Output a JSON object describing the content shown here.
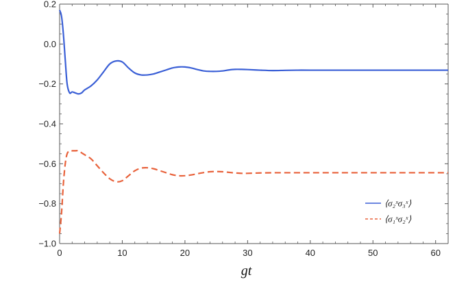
{
  "chart_data": {
    "type": "line",
    "title": "",
    "xlabel": "gt",
    "ylabel": "",
    "xlim": [
      0,
      62
    ],
    "ylim": [
      -1.0,
      0.2
    ],
    "x_ticks": [
      0,
      10,
      20,
      30,
      40,
      50,
      60
    ],
    "x_tick_labels": [
      "0",
      "10",
      "20",
      "30",
      "40",
      "50",
      "60"
    ],
    "y_ticks": [
      0.2,
      0.0,
      -0.2,
      -0.4,
      -0.6,
      -0.8,
      -1.0
    ],
    "y_tick_labels": [
      "0.2",
      "0.0",
      "−0.2",
      "−0.4",
      "−0.6",
      "−0.8",
      "−1.0"
    ],
    "grid": false,
    "legend_position": "right",
    "series": [
      {
        "name": "⟨σ₂ˣσ₃ˣ⟩",
        "color": "#3a5fd6",
        "style": "solid",
        "x": [
          0,
          0.3,
          0.6,
          0.9,
          1.2,
          1.6,
          2.0,
          2.5,
          3.0,
          3.5,
          4.0,
          5.0,
          6.0,
          7.0,
          8.0,
          9.0,
          10.0,
          11.0,
          12.0,
          13.0,
          14.0,
          15.0,
          16.0,
          17.0,
          18.0,
          19.0,
          20.0,
          21.0,
          22.0,
          23.0,
          24.0,
          25.0,
          26.0,
          27.0,
          28.0,
          29.0,
          30.0,
          32.0,
          34.0,
          36.0,
          38.0,
          40.0,
          45.0,
          50.0,
          55.0,
          60.0,
          62.0
        ],
        "y": [
          0.17,
          0.14,
          0.05,
          -0.08,
          -0.2,
          -0.245,
          -0.24,
          -0.245,
          -0.25,
          -0.245,
          -0.23,
          -0.21,
          -0.18,
          -0.14,
          -0.1,
          -0.085,
          -0.09,
          -0.12,
          -0.145,
          -0.155,
          -0.155,
          -0.15,
          -0.14,
          -0.13,
          -0.12,
          -0.115,
          -0.115,
          -0.12,
          -0.128,
          -0.135,
          -0.137,
          -0.137,
          -0.135,
          -0.13,
          -0.127,
          -0.127,
          -0.128,
          -0.131,
          -0.133,
          -0.132,
          -0.131,
          -0.131,
          -0.131,
          -0.131,
          -0.131,
          -0.131,
          -0.131
        ]
      },
      {
        "name": "⟨σ₁ˣσ₂ˣ⟩",
        "color": "#e8613a",
        "style": "dashed",
        "x": [
          0,
          0.3,
          0.6,
          0.9,
          1.2,
          1.6,
          2.0,
          2.5,
          3.0,
          3.5,
          4.0,
          5.0,
          6.0,
          7.0,
          8.0,
          9.0,
          10.0,
          11.0,
          12.0,
          13.0,
          14.0,
          15.0,
          16.0,
          17.0,
          18.0,
          19.0,
          20.0,
          21.0,
          22.0,
          23.0,
          24.0,
          25.0,
          26.0,
          27.0,
          28.0,
          29.0,
          30.0,
          32.0,
          34.0,
          36.0,
          38.0,
          40.0,
          45.0,
          50.0,
          55.0,
          60.0,
          62.0
        ],
        "y": [
          -0.95,
          -0.85,
          -0.7,
          -0.6,
          -0.55,
          -0.535,
          -0.535,
          -0.535,
          -0.535,
          -0.545,
          -0.555,
          -0.575,
          -0.61,
          -0.645,
          -0.675,
          -0.69,
          -0.685,
          -0.66,
          -0.635,
          -0.622,
          -0.62,
          -0.625,
          -0.635,
          -0.645,
          -0.655,
          -0.66,
          -0.66,
          -0.656,
          -0.65,
          -0.644,
          -0.64,
          -0.639,
          -0.64,
          -0.643,
          -0.646,
          -0.648,
          -0.648,
          -0.646,
          -0.645,
          -0.645,
          -0.645,
          -0.645,
          -0.645,
          -0.645,
          -0.645,
          -0.645,
          -0.645
        ]
      }
    ]
  }
}
